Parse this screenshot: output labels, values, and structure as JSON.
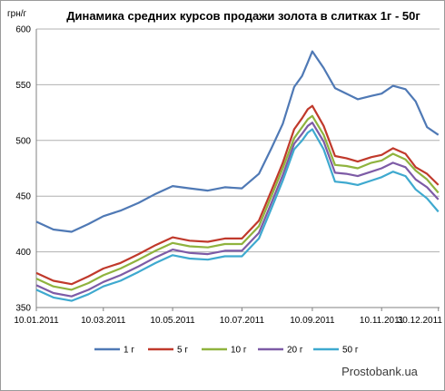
{
  "chart_data": {
    "type": "line",
    "title": "Динамика средних курсов продажи золота в слитках 1г - 50г",
    "ylabel": "грн/г",
    "xlabel": "",
    "ylim": [
      350,
      600
    ],
    "yticks": [
      350,
      400,
      450,
      500,
      550,
      600
    ],
    "xlim": [
      "2011-01-10",
      "2011-12-31"
    ],
    "xtick_labels": [
      "10.01.2011",
      "10.03.2011",
      "10.05.2011",
      "10.07.2011",
      "10.09.2011",
      "10.11.2011",
      "30.12.2011"
    ],
    "xtick_dates": [
      "2011-01-10",
      "2011-03-10",
      "2011-05-10",
      "2011-07-10",
      "2011-09-10",
      "2011-11-10",
      "2011-12-30"
    ],
    "grid": "horizontal",
    "legend": "bottom",
    "x": [
      "2011-01-10",
      "2011-01-25",
      "2011-02-10",
      "2011-02-25",
      "2011-03-10",
      "2011-03-25",
      "2011-04-10",
      "2011-04-25",
      "2011-05-10",
      "2011-05-25",
      "2011-06-10",
      "2011-06-25",
      "2011-07-10",
      "2011-07-25",
      "2011-08-05",
      "2011-08-15",
      "2011-08-25",
      "2011-09-01",
      "2011-09-06",
      "2011-09-10",
      "2011-09-20",
      "2011-09-30",
      "2011-10-10",
      "2011-10-20",
      "2011-11-01",
      "2011-11-10",
      "2011-11-20",
      "2011-12-01",
      "2011-12-10",
      "2011-12-20",
      "2011-12-30"
    ],
    "series": [
      {
        "name": "1 г",
        "color": "#4f79b5",
        "values": [
          427,
          420,
          418,
          425,
          432,
          437,
          444,
          452,
          459,
          457,
          455,
          458,
          457,
          470,
          493,
          515,
          548,
          558,
          570,
          580,
          565,
          547,
          542,
          537,
          540,
          542,
          549,
          546,
          535,
          512,
          505
        ]
      },
      {
        "name": "5 г",
        "color": "#c0392b",
        "values": [
          381,
          374,
          371,
          378,
          385,
          390,
          398,
          406,
          413,
          410,
          409,
          412,
          412,
          428,
          455,
          480,
          510,
          520,
          528,
          531,
          513,
          486,
          484,
          481,
          485,
          487,
          493,
          488,
          476,
          470,
          460
        ]
      },
      {
        "name": "10 г",
        "color": "#8fb33e",
        "values": [
          376,
          369,
          366,
          372,
          379,
          385,
          393,
          401,
          408,
          405,
          404,
          407,
          407,
          423,
          450,
          475,
          502,
          512,
          519,
          522,
          505,
          478,
          477,
          475,
          480,
          482,
          488,
          483,
          473,
          465,
          453
        ]
      },
      {
        "name": "20 г",
        "color": "#7d5ba6",
        "values": [
          370,
          363,
          360,
          366,
          373,
          379,
          387,
          395,
          402,
          399,
          398,
          401,
          401,
          417,
          444,
          469,
          497,
          506,
          513,
          516,
          499,
          471,
          470,
          468,
          472,
          475,
          480,
          476,
          465,
          458,
          447
        ]
      },
      {
        "name": "50 г",
        "color": "#3ea9cf",
        "values": [
          366,
          359,
          356,
          362,
          369,
          374,
          382,
          390,
          397,
          394,
          393,
          396,
          396,
          412,
          439,
          464,
          492,
          500,
          507,
          510,
          492,
          463,
          462,
          460,
          464,
          467,
          472,
          468,
          456,
          448,
          436
        ]
      }
    ]
  },
  "watermark": "Prostobank.ua"
}
